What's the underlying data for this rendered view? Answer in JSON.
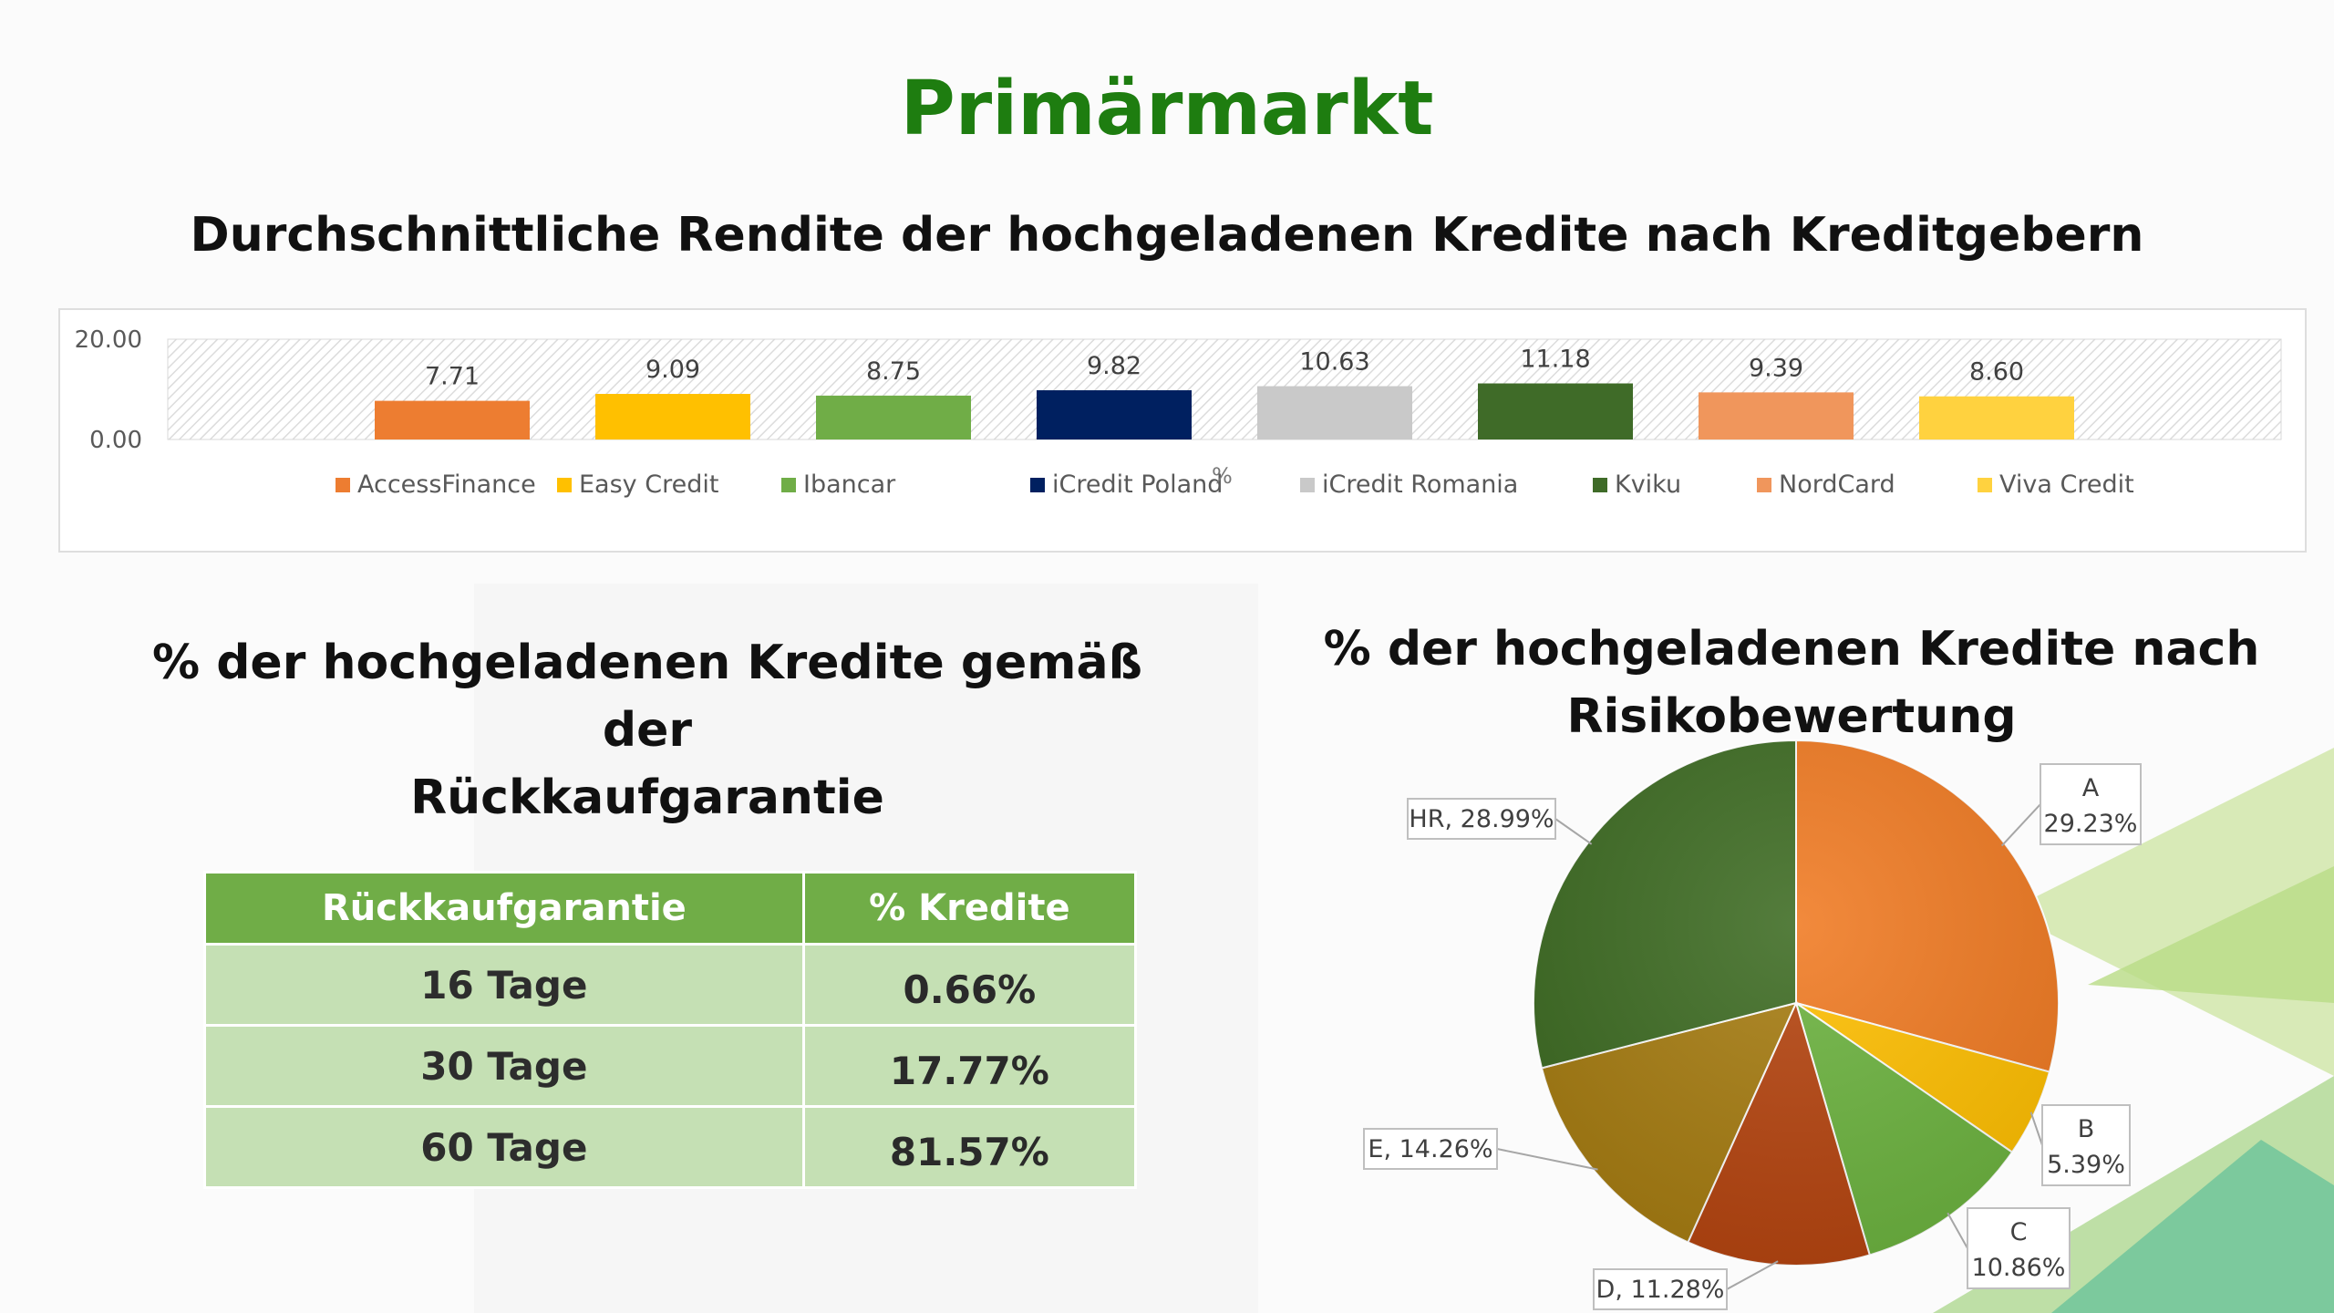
{
  "slide": {
    "title": "Primärmarkt"
  },
  "bar_section": {
    "title": "Durchschnittliche Rendite der hochgeladenen Kredite nach Kreditgebern",
    "unit_mark": "%"
  },
  "table_section": {
    "title_line1": "% der hochgeladenen Kredite gemäß der",
    "title_line2": "Rückkaufgarantie",
    "headers": [
      "Rückkaufgarantie",
      "% Kredite"
    ],
    "rows": [
      {
        "term": "16 Tage",
        "share": "0.66%"
      },
      {
        "term": "30 Tage",
        "share": "17.77%"
      },
      {
        "term": "60 Tage",
        "share": "81.57%"
      }
    ]
  },
  "pie_section": {
    "title_line1": "% der hochgeladenen Kredite nach",
    "title_line2": "Risikobewertung"
  },
  "chart_data": [
    {
      "type": "bar",
      "title": "Durchschnittliche Rendite der hochgeladenen Kredite nach Kreditgebern",
      "categories": [
        "AccessFinance",
        "Easy Credit",
        "Ibancar",
        "iCredit Poland",
        "iCredit Romania",
        "Kviku",
        "NordCard",
        "Viva Credit"
      ],
      "values": [
        7.71,
        9.09,
        8.75,
        9.82,
        10.63,
        11.18,
        9.39,
        8.6
      ],
      "value_labels": [
        "7.71",
        "9.09",
        "8.75",
        "9.82",
        "10.63",
        "11.18",
        "9.39",
        "8.60"
      ],
      "colors": [
        "#ed7d31",
        "#ffc000",
        "#70ad47",
        "#002060",
        "#c9c9c9",
        "#3f6b28",
        "#f0965c",
        "#ffd23f"
      ],
      "ylim": [
        0,
        20
      ],
      "yticks": [
        "0.00",
        "20.00"
      ],
      "legend": "bottom",
      "plot_background": "hatched"
    },
    {
      "type": "pie",
      "title": "% der hochgeladenen Kredite nach Risikobewertung",
      "slices": [
        {
          "label": "A",
          "value": 29.23,
          "value_label": "29.23%",
          "color": "#f07a22"
        },
        {
          "label": "B",
          "value": 5.39,
          "value_label": "5.39%",
          "color": "#ffbf00"
        },
        {
          "label": "C",
          "value": 10.86,
          "value_label": "10.86%",
          "color": "#6cb33f"
        },
        {
          "label": "D",
          "value": 11.28,
          "value_label": "11.28%",
          "color": "#b5440f"
        },
        {
          "label": "E",
          "value": 14.26,
          "value_label": "14.26%",
          "color": "#a67c11"
        },
        {
          "label": "HR",
          "value": 28.99,
          "value_label": "28.99%",
          "color": "#3d6b22"
        }
      ],
      "start_angle": "12 o'clock",
      "direction": "clockwise"
    }
  ]
}
